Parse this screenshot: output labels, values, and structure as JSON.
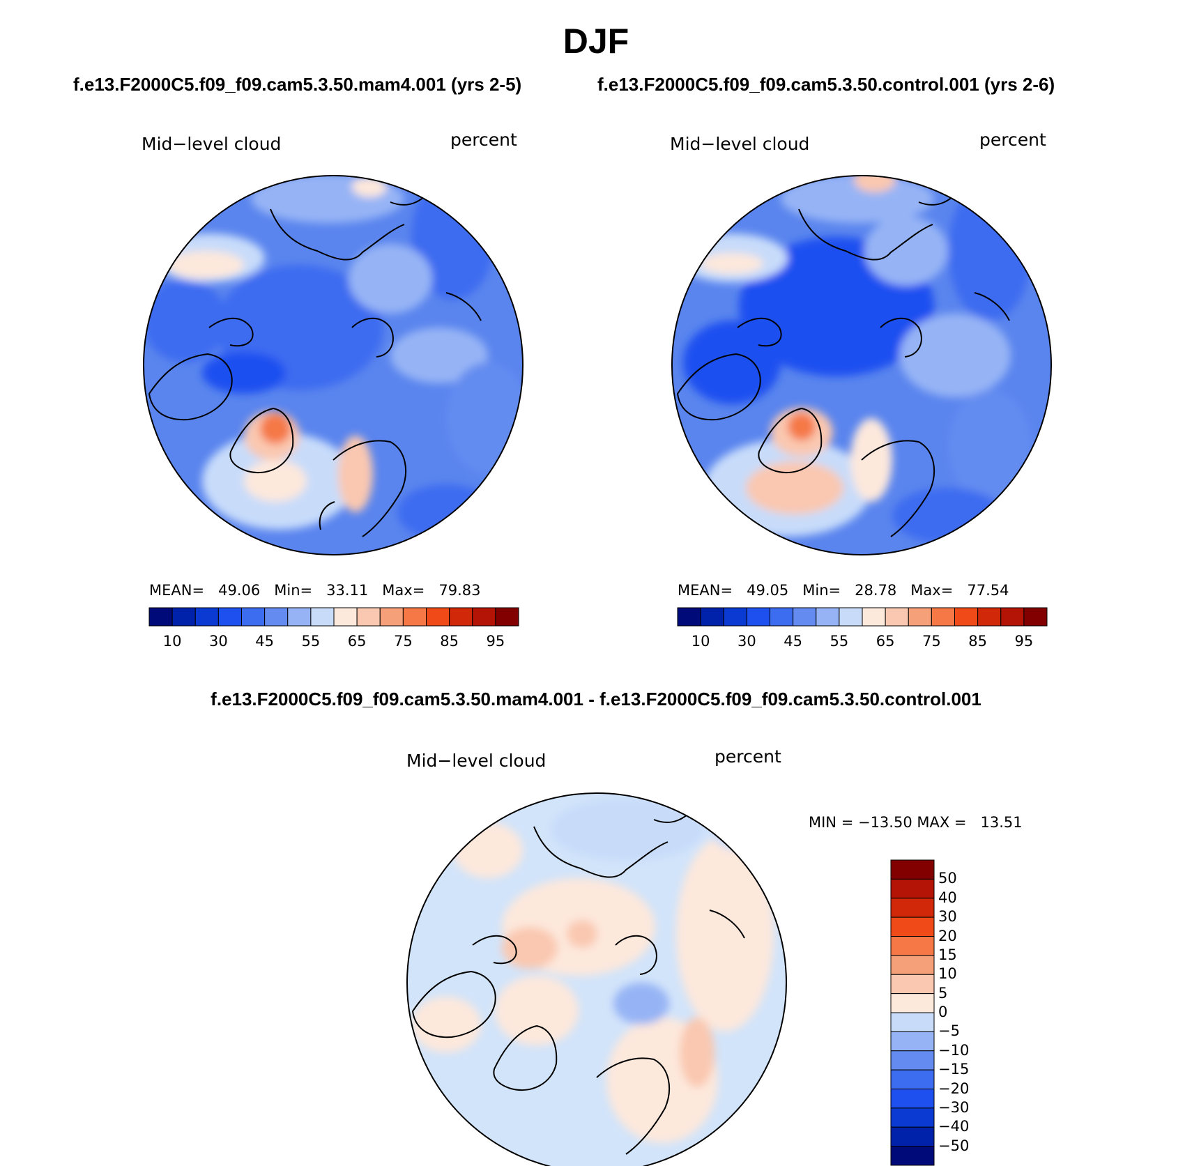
{
  "title": "DJF",
  "subtitle": {
    "left": "f.e13.F2000C5.f09_f09.cam5.3.50.mam4.001 (yrs 2-5)",
    "right": "f.e13.F2000C5.f09_f09.cam5.3.50.control.001 (yrs 2-6)"
  },
  "diff_title": "f.e13.F2000C5.f09_f09.cam5.3.50.mam4.001 - f.e13.F2000C5.f09_f09.cam5.3.50.control.001",
  "panels": [
    {
      "variable": "Mid−level cloud",
      "units": "percent",
      "stats": {
        "mean_label": "MEAN=",
        "mean": "49.06",
        "min_label": "Min=",
        "min": "33.11",
        "max_label": "Max=",
        "max": "79.83"
      }
    },
    {
      "variable": "Mid−level cloud",
      "units": "percent",
      "stats": {
        "mean_label": "MEAN=",
        "mean": "49.05",
        "min_label": "Min=",
        "min": "28.78",
        "max_label": "Max=",
        "max": "77.54"
      }
    }
  ],
  "diff_panel": {
    "variable": "Mid−level cloud",
    "units": "percent",
    "minmax": "MIN = −13.50 MAX =   13.51"
  },
  "colorbar_abs": {
    "ticks": [
      "10",
      "30",
      "45",
      "55",
      "65",
      "75",
      "85",
      "95"
    ],
    "colors": [
      "#000a78",
      "#0022aa",
      "#0a3ad2",
      "#1e50f0",
      "#3c6cf0",
      "#648cf0",
      "#96b4f5",
      "#c8dcfa",
      "#fde8dc",
      "#fac8b0",
      "#f5a078",
      "#f57846",
      "#f04a19",
      "#d2280a",
      "#b41405",
      "#820000"
    ]
  },
  "colorbar_diff": {
    "ticks": [
      "50",
      "40",
      "30",
      "20",
      "15",
      "10",
      "5",
      "0",
      "−5",
      "−10",
      "−15",
      "−20",
      "−30",
      "−40",
      "−50"
    ],
    "colors": [
      "#820000",
      "#b41405",
      "#d2280a",
      "#f04a19",
      "#f57846",
      "#f5a078",
      "#fac8b0",
      "#fde8dc",
      "#c8dcfa",
      "#96b4f5",
      "#648cf0",
      "#3c6cf0",
      "#1e50f0",
      "#0a3ad2",
      "#0022aa",
      "#000a78"
    ]
  },
  "colors": {
    "abs_base": "#5a85ee",
    "diff_base": "#d2e4fa",
    "land_outline": "#000000"
  }
}
